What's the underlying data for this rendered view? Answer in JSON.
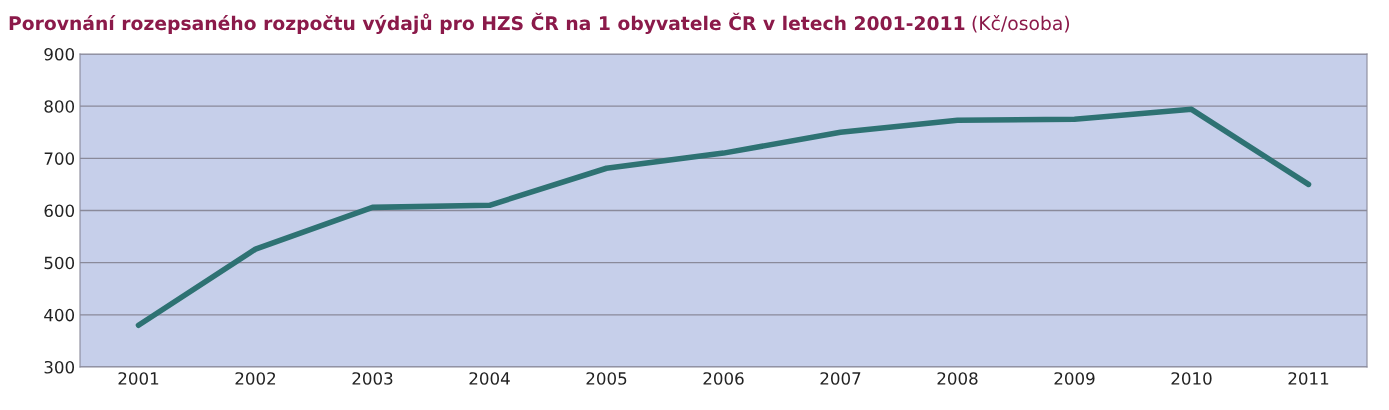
{
  "chart_data": {
    "type": "line",
    "title": "Porovnání rozepsaného rozpočtu výdajů pro HZS ČR na 1 obyvatele ČR v letech 2001-2011",
    "subtitle": "(Kč/osoba)",
    "categories": [
      "2001",
      "2002",
      "2003",
      "2004",
      "2005",
      "2006",
      "2007",
      "2008",
      "2009",
      "2010",
      "2011"
    ],
    "series": [
      {
        "color": "#2e7273",
        "values": [
          380,
          526,
          606,
          610,
          681,
          710,
          750,
          773,
          775,
          794,
          650
        ]
      }
    ],
    "ylim": [
      300,
      900
    ],
    "yticks": [
      300,
      400,
      500,
      600,
      700,
      800,
      900
    ],
    "grid": "y",
    "marker": "none",
    "line_style": "solid",
    "legend": false
  }
}
